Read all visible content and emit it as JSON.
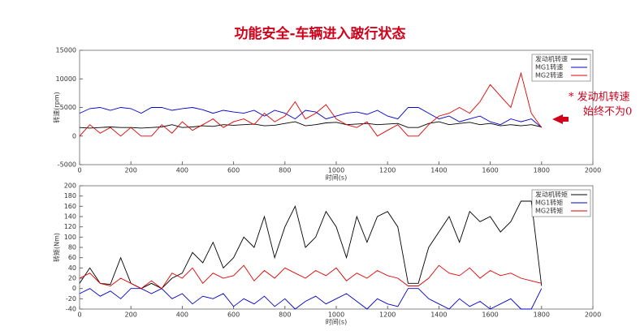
{
  "title": "功能安全-车辆进入跛行状态",
  "chart_data": [
    {
      "type": "line",
      "x_label": "时间(s)",
      "y_label": "转速(rpm)",
      "xlim": [
        0,
        2000
      ],
      "xticks": [
        0,
        200,
        400,
        600,
        800,
        1000,
        1200,
        1400,
        1600,
        1800,
        2000
      ],
      "ylim": [
        -5000,
        15000
      ],
      "yticks": [
        -5000,
        0,
        5000,
        10000,
        15000
      ],
      "annotations": [
        "* 发动机转速",
        "始终不为0"
      ],
      "x": [
        0,
        40,
        80,
        120,
        160,
        200,
        240,
        280,
        320,
        360,
        400,
        440,
        480,
        520,
        560,
        600,
        640,
        680,
        720,
        760,
        800,
        840,
        880,
        920,
        960,
        1000,
        1040,
        1080,
        1120,
        1160,
        1200,
        1240,
        1280,
        1320,
        1360,
        1400,
        1440,
        1480,
        1520,
        1560,
        1600,
        1640,
        1680,
        1720,
        1760,
        1800
      ],
      "series": [
        {
          "name": "发动机转速",
          "color": "#000000",
          "values": [
            1500,
            1400,
            1500,
            1600,
            1500,
            1500,
            1400,
            1500,
            1600,
            2000,
            1500,
            1600,
            1800,
            1700,
            2000,
            1900,
            2000,
            2100,
            1800,
            1900,
            2200,
            2500,
            1800,
            2000,
            2300,
            2400,
            2000,
            2100,
            2200,
            2000,
            2100,
            2200,
            1500,
            1500,
            2200,
            2500,
            2000,
            2200,
            2400,
            2000,
            2200,
            1800,
            2000,
            1800,
            2000,
            1600
          ]
        },
        {
          "name": "MG1转速",
          "color": "#0000cc",
          "values": [
            4000,
            4800,
            5000,
            4500,
            5000,
            4800,
            4000,
            5000,
            5000,
            4500,
            4800,
            5000,
            4600,
            4000,
            4500,
            4200,
            4000,
            4500,
            3500,
            4500,
            4000,
            3000,
            4500,
            4200,
            3000,
            3500,
            4000,
            4200,
            3800,
            4500,
            3500,
            3000,
            5000,
            5000,
            4000,
            3000,
            3500,
            2500,
            3000,
            3500,
            2500,
            2000,
            3000,
            2500,
            3000,
            1500
          ]
        },
        {
          "name": "MG2转速",
          "color": "#e00000",
          "values": [
            0,
            2000,
            500,
            1500,
            0,
            1500,
            0,
            0,
            2000,
            500,
            2500,
            1000,
            2000,
            3000,
            1500,
            2500,
            3000,
            2000,
            4000,
            2500,
            3500,
            6000,
            3000,
            4000,
            5500,
            3000,
            2000,
            1500,
            2500,
            0,
            1000,
            2000,
            0,
            0,
            2000,
            3500,
            4000,
            5000,
            4000,
            6000,
            9000,
            7000,
            5000,
            11000,
            4000,
            1500
          ]
        }
      ]
    },
    {
      "type": "line",
      "x_label": "时间(s)",
      "y_label": "转矩(Nm)",
      "xlim": [
        0,
        2000
      ],
      "xticks": [
        0,
        200,
        400,
        600,
        800,
        1000,
        1200,
        1400,
        1600,
        1800,
        2000
      ],
      "ylim": [
        -40,
        200
      ],
      "yticks": [
        -40,
        -20,
        0,
        20,
        40,
        60,
        80,
        100,
        120,
        140,
        160,
        180,
        200
      ],
      "x": [
        0,
        40,
        80,
        120,
        160,
        200,
        240,
        280,
        320,
        360,
        400,
        440,
        480,
        520,
        560,
        600,
        640,
        680,
        720,
        760,
        800,
        840,
        880,
        920,
        960,
        1000,
        1040,
        1080,
        1120,
        1160,
        1200,
        1240,
        1280,
        1320,
        1360,
        1400,
        1440,
        1480,
        1520,
        1560,
        1600,
        1640,
        1680,
        1720,
        1760,
        1800
      ],
      "series": [
        {
          "name": "发动机转矩",
          "color": "#000000",
          "values": [
            10,
            40,
            10,
            8,
            60,
            10,
            0,
            10,
            0,
            20,
            30,
            70,
            50,
            90,
            40,
            60,
            100,
            80,
            140,
            60,
            120,
            160,
            80,
            100,
            150,
            120,
            60,
            140,
            90,
            140,
            150,
            120,
            10,
            10,
            80,
            110,
            140,
            90,
            150,
            130,
            140,
            110,
            130,
            170,
            170,
            5
          ]
        },
        {
          "name": "MG1转矩",
          "color": "#0000cc",
          "values": [
            -10,
            0,
            -15,
            -5,
            -20,
            0,
            0,
            -10,
            0,
            -20,
            -10,
            -30,
            -15,
            -20,
            -10,
            -35,
            -20,
            -30,
            -15,
            -35,
            -20,
            -40,
            -25,
            -15,
            -30,
            -20,
            -10,
            -25,
            -40,
            -20,
            -30,
            -35,
            0,
            0,
            -20,
            -30,
            -40,
            -20,
            -35,
            -25,
            -40,
            -30,
            -20,
            -40,
            -40,
            0
          ]
        },
        {
          "name": "MG2转矩",
          "color": "#e00000",
          "values": [
            20,
            30,
            10,
            5,
            20,
            10,
            0,
            15,
            0,
            30,
            20,
            40,
            10,
            30,
            20,
            25,
            45,
            15,
            35,
            20,
            40,
            30,
            20,
            35,
            25,
            40,
            15,
            30,
            20,
            35,
            25,
            20,
            5,
            5,
            20,
            45,
            30,
            25,
            40,
            20,
            35,
            25,
            30,
            20,
            15,
            10
          ]
        }
      ]
    }
  ]
}
